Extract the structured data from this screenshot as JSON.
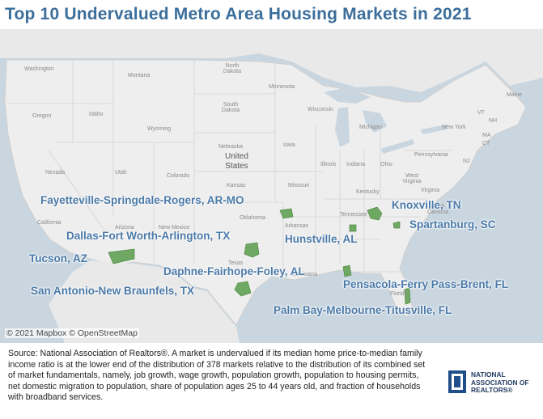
{
  "title": "Top 10 Undervalued Metro Area Housing Markets in 2021",
  "map": {
    "country_label": "United\nStates",
    "state_labels": [
      "Washington",
      "Montana",
      "North Dakota",
      "Minnesota",
      "Oregon",
      "Idaho",
      "South Dakota",
      "Wisconsin",
      "Michigan",
      "New York",
      "Wyoming",
      "Nebraska",
      "Iowa",
      "Pennsylvania",
      "Nevada",
      "Utah",
      "Colorado",
      "Kansas",
      "Missouri",
      "Illinois",
      "Indiana",
      "Ohio",
      "West Virginia",
      "Kentucky",
      "Virginia",
      "California",
      "Arizona",
      "New Mexico",
      "Oklahoma",
      "Arkansas",
      "Tennessee",
      "Texas",
      "Louisiana",
      "Florida",
      "Maine",
      "VT",
      "NH",
      "MA",
      "CT",
      "NJ",
      "North Carolina"
    ],
    "markets": [
      {
        "name": "Fayetteville-Springdale-Rogers, AR-MO"
      },
      {
        "name": "Knoxville, TN"
      },
      {
        "name": "Spartanburg, SC"
      },
      {
        "name": "Dallas-Fort Worth-Arlington, TX"
      },
      {
        "name": "Hunstville, AL"
      },
      {
        "name": "Tucson, AZ"
      },
      {
        "name": "Daphne-Fairhope-Foley, AL"
      },
      {
        "name": "Pensacola-Ferry Pass-Brent, FL"
      },
      {
        "name": "San Antonio-New Braunfels, TX"
      },
      {
        "name": "Palm Bay-Melbourne-Titusville, FL"
      }
    ],
    "colors": {
      "water": "#c9d2db",
      "land": "#ececec",
      "market_fill": "#6fa862",
      "label": "#4a79a8"
    },
    "copyright": "© 2021 Mapbox © OpenStreetMap"
  },
  "source": "Source: National Association of Realtors®. A market is undervalued if its median home price-to-median family income ratio is at the lower end of the distribution of 378 markets relative to the distribution of its combined set of market fundamentals, namely, job growth, wage growth, population growth, population to housing permits, net domestic migration to population, share of population ages 25 to 44 years old, and fraction of households with broadband services.",
  "logo": {
    "text_line1": "NATIONAL",
    "text_line2": "ASSOCIATION OF",
    "text_line3": "REALTORS®"
  }
}
